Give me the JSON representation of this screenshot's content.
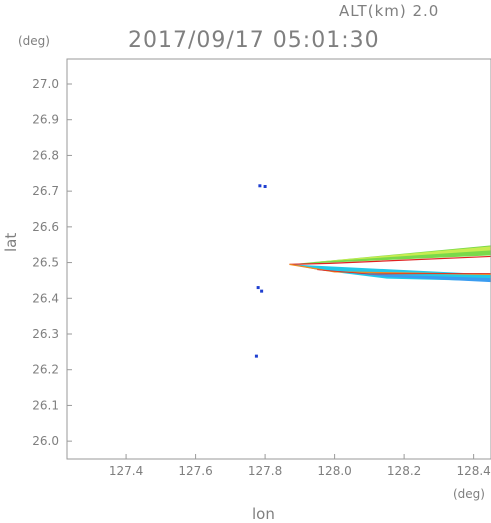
{
  "header": {
    "altitude_label": "ALT(km) 2.0",
    "timestamp": "2017/09/17 05:01:30"
  },
  "chart_data": {
    "type": "scatter",
    "title": "2017/09/17 05:01:30",
    "subtitle": "ALT(km) 2.0",
    "xlabel": "lon",
    "ylabel": "lat",
    "x_unit": "(deg)",
    "y_unit": "(deg)",
    "xlim": [
      127.23,
      128.45
    ],
    "ylim": [
      25.95,
      27.07
    ],
    "x_ticks": [
      "127.4",
      "127.6",
      "127.8",
      "128.0",
      "128.2",
      "128.4"
    ],
    "x_tick_values": [
      127.4,
      127.6,
      127.8,
      128.0,
      128.2,
      128.4
    ],
    "y_ticks": [
      "26.0",
      "26.1",
      "26.2",
      "26.3",
      "26.4",
      "26.5",
      "26.6",
      "26.7",
      "26.8",
      "26.9",
      "27.0"
    ],
    "y_tick_values": [
      26.0,
      26.1,
      26.2,
      26.3,
      26.4,
      26.5,
      26.6,
      26.7,
      26.8,
      26.9,
      27.0
    ],
    "grid": false,
    "colors": {
      "blue": "#1f3fd0",
      "light_blue": "#3a9cf0",
      "cyan": "#22c8e8",
      "green": "#7ad94a",
      "yellow_green": "#c8ec50",
      "red": "#e02020",
      "orange": "#f08a20"
    },
    "features": [
      {
        "type": "wedge",
        "apex_lon": 127.87,
        "apex_lat": 26.495,
        "end_lon": 128.45,
        "upper_lat_top": 26.548,
        "upper_lat_bottom": 26.52,
        "color": "yellow_green",
        "edge_color": "red"
      },
      {
        "type": "wedge",
        "apex_lon": 127.87,
        "apex_lat": 26.495,
        "end_lon": 128.45,
        "lower_lat_top": 26.467,
        "lower_lat_bottom": 26.448,
        "color": "cyan",
        "edge_color": "orange"
      }
    ],
    "points": [
      {
        "lon": 127.785,
        "lat": 26.715,
        "color": "blue"
      },
      {
        "lon": 127.8,
        "lat": 26.713,
        "color": "blue"
      },
      {
        "lon": 127.78,
        "lat": 26.43,
        "color": "blue"
      },
      {
        "lon": 127.79,
        "lat": 26.42,
        "color": "blue"
      },
      {
        "lon": 127.775,
        "lat": 26.238,
        "color": "blue"
      }
    ]
  }
}
